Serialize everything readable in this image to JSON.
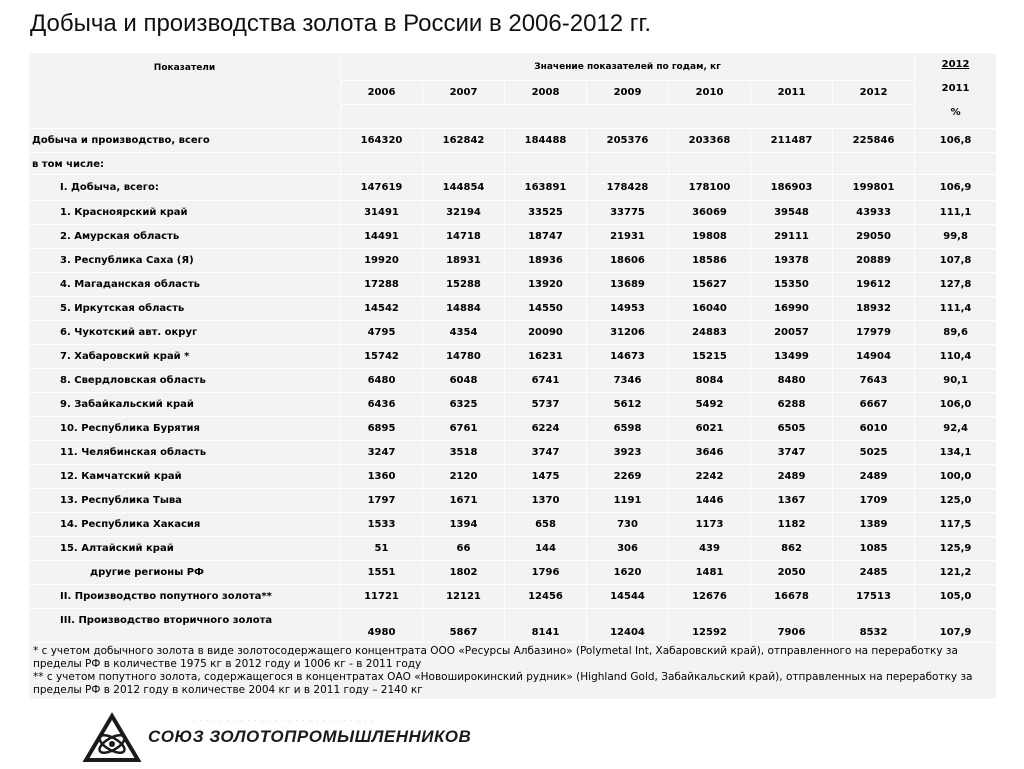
{
  "title": "Добыча и производства золота в России в 2006-2012 гг.",
  "header": {
    "indicators": "Показатели",
    "values_by_year": "Значение показателей по годам, кг",
    "years": [
      "2006",
      "2007",
      "2008",
      "2009",
      "2010",
      "2011",
      "2012"
    ],
    "ratio_top": "2012",
    "ratio_bottom": "2011",
    "ratio_unit": "%"
  },
  "rows": [
    {
      "label": "Добыча и производство, всего",
      "values": [
        "164320",
        "162842",
        "184488",
        "205376",
        "203368",
        "211487",
        "225846"
      ],
      "ratio": "106,8"
    },
    {
      "label": "в том числе:",
      "values": [
        "",
        "",
        "",
        "",
        "",
        "",
        ""
      ],
      "ratio": ""
    },
    {
      "label": "I.      Добыча, всего:",
      "values": [
        "147619",
        "144854",
        "163891",
        "178428",
        "178100",
        "186903",
        "199801"
      ],
      "ratio": "106,9"
    },
    {
      "label": "1.      Красноярский край",
      "values": [
        "31491",
        "32194",
        "33525",
        "33775",
        "36069",
        "39548",
        "43933"
      ],
      "ratio": "111,1"
    },
    {
      "label": "2.      Амурская область",
      "values": [
        "14491",
        "14718",
        "18747",
        "21931",
        "19808",
        "29111",
        "29050"
      ],
      "ratio": "99,8"
    },
    {
      "label": "3.      Республика Саха (Я)",
      "values": [
        "19920",
        "18931",
        "18936",
        "18606",
        "18586",
        "19378",
        "20889"
      ],
      "ratio": "107,8"
    },
    {
      "label": "4.      Магаданская область",
      "values": [
        "17288",
        "15288",
        "13920",
        "13689",
        "15627",
        "15350",
        "19612"
      ],
      "ratio": "127,8"
    },
    {
      "label": "5.      Иркутская область",
      "values": [
        "14542",
        "14884",
        "14550",
        "14953",
        "16040",
        "16990",
        "18932"
      ],
      "ratio": "111,4"
    },
    {
      "label": "6.      Чукотский авт. округ",
      "values": [
        "4795",
        "4354",
        "20090",
        "31206",
        "24883",
        "20057",
        "17979"
      ],
      "ratio": "89,6"
    },
    {
      "label": "7.      Хабаровский край *",
      "values": [
        "15742",
        "14780",
        "16231",
        "14673",
        "15215",
        "13499",
        "14904"
      ],
      "ratio": "110,4"
    },
    {
      "label": "8.      Свердловская область",
      "values": [
        "6480",
        "6048",
        "6741",
        "7346",
        "8084",
        "8480",
        "7643"
      ],
      "ratio": "90,1"
    },
    {
      "label": "9.      Забайкальский край",
      "values": [
        "6436",
        "6325",
        "5737",
        "5612",
        "5492",
        "6288",
        "6667"
      ],
      "ratio": "106,0"
    },
    {
      "label": "10.     Республика Бурятия",
      "values": [
        "6895",
        "6761",
        "6224",
        "6598",
        "6021",
        "6505",
        "6010"
      ],
      "ratio": "92,4"
    },
    {
      "label": "11.     Челябинская область",
      "values": [
        "3247",
        "3518",
        "3747",
        "3923",
        "3646",
        "3747",
        "5025"
      ],
      "ratio": "134,1"
    },
    {
      "label": "12.     Камчатский край",
      "values": [
        "1360",
        "2120",
        "1475",
        "2269",
        "2242",
        "2489",
        "2489"
      ],
      "ratio": "100,0"
    },
    {
      "label": "13.     Республика Тыва",
      "values": [
        "1797",
        "1671",
        "1370",
        "1191",
        "1446",
        "1367",
        "1709"
      ],
      "ratio": "125,0"
    },
    {
      "label": "14.     Республика Хакасия",
      "values": [
        "1533",
        "1394",
        "658",
        "730",
        "1173",
        "1182",
        "1389"
      ],
      "ratio": "117,5"
    },
    {
      "label": "15.     Алтайский край",
      "values": [
        "51",
        "66",
        "144",
        "306",
        "439",
        "862",
        "1085"
      ],
      "ratio": "125,9"
    },
    {
      "label": "другие регионы РФ",
      "values": [
        "1551",
        "1802",
        "1796",
        "1620",
        "1481",
        "2050",
        "2485"
      ],
      "ratio": "121,2"
    },
    {
      "label": "II.   Производство попутного золота**",
      "values": [
        "11721",
        "12121",
        "12456",
        "14544",
        "12676",
        "16678",
        "17513"
      ],
      "ratio": "105,0"
    },
    {
      "label": "III.   Производство вторичного золота",
      "values": [
        "4980",
        "5867",
        "8141",
        "12404",
        "12592",
        "7906",
        "8532"
      ],
      "ratio": "107,9"
    }
  ],
  "footnotes": {
    "note1": "* с учетом добычного золота в виде золотосодержащего концентрата  ООО «Ресурсы Албазино» (Polymetal Int, Хабаровский край), отправленного на переработку за пределы РФ в количестве 1975 кг в 2012 году и 1006 кг - в 2011 году",
    "note2": " ** с учетом попутного золота, содержащегося в концентратах ОАО «Новоширокинский рудник» (Highland Gold, Забайкальский край), отправленных  на переработку за пределы РФ в 2012 году в количестве 2004 кг и в 2011 году – 2140 кг"
  },
  "logo": {
    "text": "СОЮЗ ЗОЛОТОПРОМЫШЛЕННИКОВ"
  }
}
